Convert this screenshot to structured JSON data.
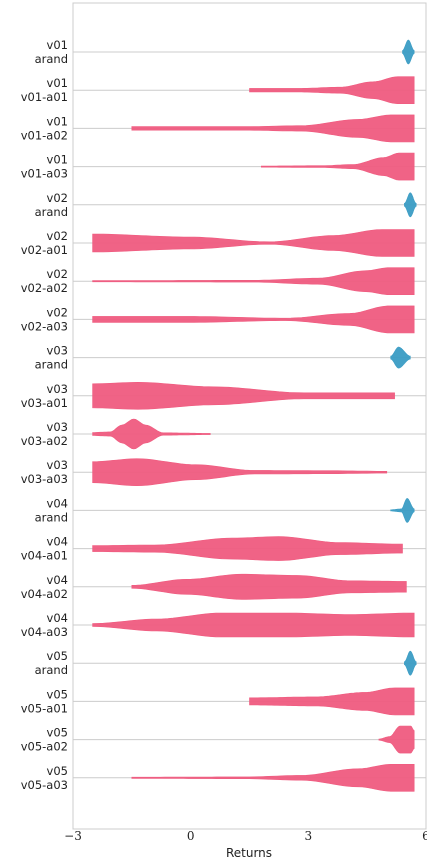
{
  "chart_data": {
    "type": "violin",
    "orientation": "horizontal",
    "xlabel": "Returns",
    "xlim": [
      -3,
      6
    ],
    "xticks": [
      -3,
      0,
      3,
      6
    ],
    "grid": true,
    "colors": {
      "agent": "#ef5b7f",
      "random": "#3a9cc4"
    },
    "rows": [
      {
        "label": [
          "v01",
          "arand"
        ],
        "kind": "random",
        "min": 5.4,
        "max": 5.7,
        "peak": 5.6,
        "dens": [
          [
            0,
            0.05
          ],
          [
            0.5,
            0.4
          ],
          [
            1,
            0.05
          ]
        ]
      },
      {
        "label": [
          "v01",
          "v01-a01"
        ],
        "kind": "agent",
        "min": 1.5,
        "max": 5.7,
        "dens": [
          [
            0,
            0.06
          ],
          [
            0.3,
            0.06
          ],
          [
            0.55,
            0.1
          ],
          [
            0.75,
            0.28
          ],
          [
            0.9,
            0.45
          ],
          [
            1,
            0.45
          ]
        ]
      },
      {
        "label": [
          "v01",
          "v01-a02"
        ],
        "kind": "agent",
        "min": -1.5,
        "max": 5.7,
        "dens": [
          [
            0,
            0.06
          ],
          [
            0.4,
            0.06
          ],
          [
            0.6,
            0.09
          ],
          [
            0.8,
            0.3
          ],
          [
            0.92,
            0.45
          ],
          [
            1,
            0.45
          ]
        ]
      },
      {
        "label": [
          "v01",
          "v01-a03"
        ],
        "kind": "agent",
        "min": 1.8,
        "max": 5.7,
        "dens": [
          [
            0,
            0.02
          ],
          [
            0.4,
            0.03
          ],
          [
            0.6,
            0.07
          ],
          [
            0.8,
            0.3
          ],
          [
            0.9,
            0.45
          ],
          [
            1,
            0.45
          ]
        ]
      },
      {
        "label": [
          "v02",
          "arand"
        ],
        "kind": "random",
        "min": 5.45,
        "max": 5.75,
        "peak": 5.6,
        "dens": [
          [
            0,
            0.05
          ],
          [
            0.5,
            0.4
          ],
          [
            1,
            0.05
          ]
        ]
      },
      {
        "label": [
          "v02",
          "v02-a01"
        ],
        "kind": "agent",
        "min": -2.5,
        "max": 5.7,
        "dens": [
          [
            0,
            0.3
          ],
          [
            0.3,
            0.2
          ],
          [
            0.55,
            0.04
          ],
          [
            0.75,
            0.25
          ],
          [
            0.9,
            0.45
          ],
          [
            1,
            0.45
          ]
        ]
      },
      {
        "label": [
          "v02",
          "v02-a02"
        ],
        "kind": "agent",
        "min": -2.5,
        "max": 5.7,
        "dens": [
          [
            0,
            0.02
          ],
          [
            0.5,
            0.03
          ],
          [
            0.7,
            0.1
          ],
          [
            0.85,
            0.35
          ],
          [
            0.92,
            0.45
          ],
          [
            1,
            0.45
          ]
        ]
      },
      {
        "label": [
          "v02",
          "v02-a03"
        ],
        "kind": "agent",
        "min": -2.5,
        "max": 5.7,
        "dens": [
          [
            0,
            0.1
          ],
          [
            0.3,
            0.1
          ],
          [
            0.6,
            0.04
          ],
          [
            0.8,
            0.2
          ],
          [
            0.92,
            0.45
          ],
          [
            1,
            0.45
          ]
        ]
      },
      {
        "label": [
          "v03",
          "arand"
        ],
        "kind": "random",
        "min": 5.1,
        "max": 5.6,
        "peak": 5.35,
        "dens": [
          [
            0,
            0.05
          ],
          [
            0.4,
            0.35
          ],
          [
            1,
            0.05
          ]
        ]
      },
      {
        "label": [
          "v03",
          "v03-a01"
        ],
        "kind": "agent",
        "min": -2.5,
        "max": 5.2,
        "dens": [
          [
            0,
            0.4
          ],
          [
            0.15,
            0.45
          ],
          [
            0.4,
            0.3
          ],
          [
            0.7,
            0.1
          ],
          [
            0.9,
            0.1
          ],
          [
            1,
            0.1
          ]
        ]
      },
      {
        "label": [
          "v03",
          "v03-a02"
        ],
        "kind": "agent",
        "min": -2.5,
        "max": 0.5,
        "dens": [
          [
            0,
            0.05
          ],
          [
            0.15,
            0.07
          ],
          [
            0.25,
            0.3
          ],
          [
            0.35,
            0.5
          ],
          [
            0.45,
            0.3
          ],
          [
            0.6,
            0.04
          ],
          [
            1,
            0.02
          ]
        ]
      },
      {
        "label": [
          "v03",
          "v03-a03"
        ],
        "kind": "agent",
        "min": -2.5,
        "max": 5.0,
        "dens": [
          [
            0,
            0.35
          ],
          [
            0.15,
            0.45
          ],
          [
            0.35,
            0.25
          ],
          [
            0.55,
            0.06
          ],
          [
            0.8,
            0.05
          ],
          [
            1,
            0.03
          ]
        ]
      },
      {
        "label": [
          "v04",
          "arand"
        ],
        "kind": "random",
        "min": 5.1,
        "max": 5.7,
        "peak": 5.5,
        "dens": [
          [
            0,
            0.02
          ],
          [
            0.45,
            0.05
          ],
          [
            0.7,
            0.4
          ],
          [
            1,
            0.05
          ]
        ]
      },
      {
        "label": [
          "v04",
          "v04-a01"
        ],
        "kind": "agent",
        "min": -2.5,
        "max": 5.4,
        "dens": [
          [
            0,
            0.1
          ],
          [
            0.2,
            0.12
          ],
          [
            0.45,
            0.35
          ],
          [
            0.6,
            0.4
          ],
          [
            0.8,
            0.2
          ],
          [
            1,
            0.15
          ]
        ]
      },
      {
        "label": [
          "v04",
          "v04-a02"
        ],
        "kind": "agent",
        "min": -1.5,
        "max": 5.5,
        "dens": [
          [
            0,
            0.05
          ],
          [
            0.2,
            0.25
          ],
          [
            0.4,
            0.42
          ],
          [
            0.6,
            0.38
          ],
          [
            0.8,
            0.2
          ],
          [
            1,
            0.18
          ]
        ]
      },
      {
        "label": [
          "v04",
          "v04-a03"
        ],
        "kind": "agent",
        "min": -2.5,
        "max": 5.7,
        "dens": [
          [
            0,
            0.05
          ],
          [
            0.2,
            0.2
          ],
          [
            0.4,
            0.4
          ],
          [
            0.6,
            0.4
          ],
          [
            0.8,
            0.35
          ],
          [
            1,
            0.4
          ]
        ]
      },
      {
        "label": [
          "v05",
          "arand"
        ],
        "kind": "random",
        "min": 5.45,
        "max": 5.75,
        "peak": 5.6,
        "dens": [
          [
            0,
            0.05
          ],
          [
            0.5,
            0.4
          ],
          [
            1,
            0.05
          ]
        ]
      },
      {
        "label": [
          "v05",
          "v05-a01"
        ],
        "kind": "agent",
        "min": 1.5,
        "max": 5.7,
        "dens": [
          [
            0,
            0.12
          ],
          [
            0.4,
            0.15
          ],
          [
            0.7,
            0.3
          ],
          [
            0.88,
            0.45
          ],
          [
            1,
            0.45
          ]
        ]
      },
      {
        "label": [
          "v05",
          "v05-a02"
        ],
        "kind": "agent",
        "min": 4.8,
        "max": 5.7,
        "dens": [
          [
            0,
            0.02
          ],
          [
            0.3,
            0.1
          ],
          [
            0.6,
            0.45
          ],
          [
            0.9,
            0.45
          ],
          [
            1,
            0.3
          ]
        ]
      },
      {
        "label": [
          "v05",
          "v05-a03"
        ],
        "kind": "agent",
        "min": -1.5,
        "max": 5.7,
        "dens": [
          [
            0,
            0.02
          ],
          [
            0.4,
            0.03
          ],
          [
            0.6,
            0.08
          ],
          [
            0.8,
            0.3
          ],
          [
            0.92,
            0.45
          ],
          [
            1,
            0.45
          ]
        ]
      }
    ]
  }
}
